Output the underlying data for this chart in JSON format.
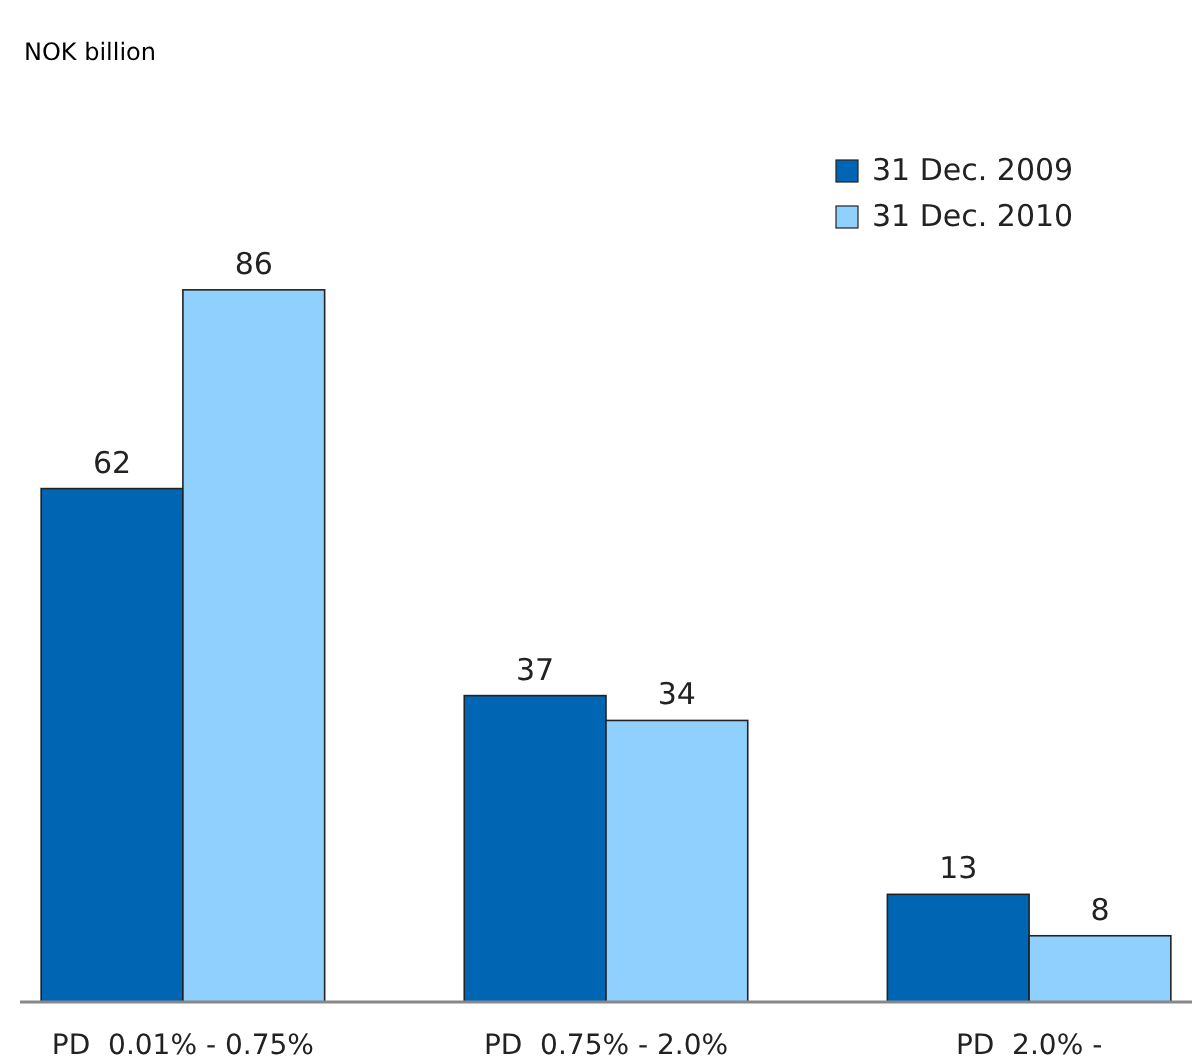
{
  "chart_data": {
    "type": "bar",
    "subtitle": "NOK billion",
    "categories": [
      "PD  0.01% - 0.75%",
      "PD  0.75% - 2.0%",
      "PD  2.0% -"
    ],
    "series": [
      {
        "name": "31 Dec. 2009",
        "color": "#0066b3",
        "values": [
          62,
          37,
          13
        ]
      },
      {
        "name": "31 Dec. 2010",
        "color": "#8fd0ff",
        "values": [
          86,
          34,
          8
        ]
      }
    ],
    "data_labels": true,
    "legend": "top right"
  }
}
